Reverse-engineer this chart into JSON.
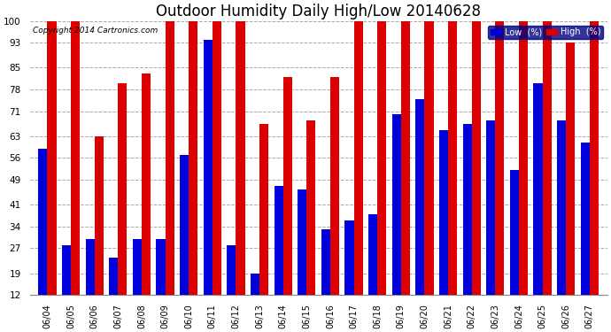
{
  "title": "Outdoor Humidity Daily High/Low 20140628",
  "copyright": "Copyright 2014 Cartronics.com",
  "dates": [
    "06/04",
    "06/05",
    "06/06",
    "06/07",
    "06/08",
    "06/09",
    "06/10",
    "06/11",
    "06/12",
    "06/13",
    "06/14",
    "06/15",
    "06/16",
    "06/17",
    "06/18",
    "06/19",
    "06/20",
    "06/21",
    "06/22",
    "06/23",
    "06/24",
    "06/25",
    "06/26",
    "06/27"
  ],
  "high": [
    100,
    100,
    63,
    80,
    83,
    100,
    100,
    100,
    100,
    67,
    82,
    68,
    82,
    100,
    100,
    100,
    100,
    100,
    100,
    100,
    100,
    100,
    93,
    100
  ],
  "low": [
    59,
    28,
    30,
    24,
    30,
    30,
    57,
    94,
    28,
    19,
    47,
    46,
    33,
    36,
    38,
    70,
    75,
    65,
    67,
    68,
    52,
    80,
    68,
    61
  ],
  "ylim": [
    12,
    100
  ],
  "yticks": [
    12,
    19,
    27,
    34,
    41,
    49,
    56,
    63,
    71,
    78,
    85,
    93,
    100
  ],
  "bar_width": 0.38,
  "low_color": "#0000dd",
  "high_color": "#dd0000",
  "bg_color": "#ffffff",
  "grid_color": "#aaaaaa",
  "title_fontsize": 12,
  "legend_low_label": "Low  (%)",
  "legend_high_label": "High  (%)",
  "legend_bg": "#000080",
  "copyright_color": "#000000"
}
